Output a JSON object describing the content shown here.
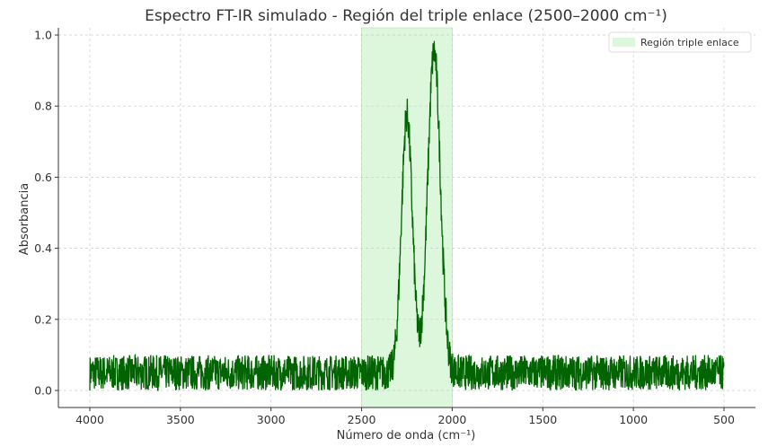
{
  "chart_data": {
    "type": "line",
    "title": "Espectro FT-IR simulado - Región del triple enlace (2500–2000 cm⁻¹)",
    "xlabel": "Número de onda (cm⁻¹)",
    "ylabel": "Absorbancia",
    "xlim": [
      4175,
      325
    ],
    "xaxis_inverted": true,
    "ylim": [
      -0.05,
      1.02
    ],
    "xticks": [
      4000,
      3500,
      3000,
      2500,
      2000,
      1500,
      1000,
      500
    ],
    "xtick_labels": [
      "4000",
      "3500",
      "3000",
      "2500",
      "2000",
      "1500",
      "1000",
      "500"
    ],
    "yticks": [
      0.0,
      0.2,
      0.4,
      0.6,
      0.8,
      1.0
    ],
    "ytick_labels": [
      "0.0",
      "0.2",
      "0.4",
      "0.6",
      "0.8",
      "1.0"
    ],
    "grid": true,
    "legend_position": "upper right",
    "legend": [
      "Región triple enlace"
    ],
    "x_range": [
      4000,
      500
    ],
    "baseline_noise": {
      "min": 0.0,
      "max": 0.1,
      "mean": 0.05
    },
    "peaks": [
      {
        "wavenumber": 2250,
        "absorbance": 0.78,
        "width": 30
      },
      {
        "wavenumber": 2100,
        "absorbance": 0.97,
        "width": 35
      }
    ],
    "valley": {
      "wavenumber": 2180,
      "absorbance": 0.05
    },
    "shaded_region": {
      "label": "Región triple enlace",
      "x_from": 2500,
      "x_to": 2000
    },
    "series": [
      {
        "name": "Espectro",
        "color": "#006400"
      }
    ],
    "colors": {
      "line": "#006400",
      "shade": "#dcf7dc",
      "shade_edge": "#b8e8b8",
      "grid": "#cccccc",
      "axis": "#333333"
    }
  }
}
